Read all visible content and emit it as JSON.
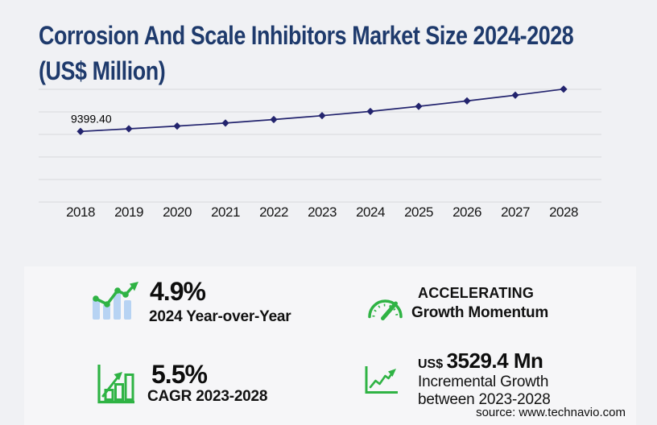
{
  "header": {
    "title_line1": "Corrosion And Scale Inhibitors Market Size 2024-2028",
    "title_line2": "(US$ Million)"
  },
  "chart_data": {
    "type": "line",
    "title": "Corrosion And Scale Inhibitors Market Size 2024-2028 (US$ Million)",
    "x": [
      "2018",
      "2019",
      "2020",
      "2021",
      "2022",
      "2023",
      "2024",
      "2025",
      "2026",
      "2027",
      "2028"
    ],
    "series": [
      {
        "name": "Market size (US$ Million)",
        "values": [
          9399.4,
          9750,
          10110,
          10510,
          10980,
          11498.3,
          12061.7,
          12740,
          13460,
          14220,
          15027.7
        ]
      }
    ],
    "point_labels": [
      {
        "x": "2018",
        "text": "9399.40"
      }
    ],
    "xlabel": "",
    "ylabel": "",
    "ylim": [
      0,
      15000
    ],
    "gridline_step": 3000,
    "grid": true,
    "legend": "none",
    "marker": "diamond",
    "line_color": "#23246e"
  },
  "stats": [
    {
      "value": "4.9%",
      "label": "2024 Year-over-Year",
      "icon": "bar-chart-trend-icon"
    },
    {
      "value": "5.5%",
      "label": "CAGR 2023-2028",
      "icon": "bar-chart-growth-icon"
    },
    {
      "line1": "ACCELERATING",
      "line2": "Growth Momentum",
      "icon": "speedometer-icon"
    },
    {
      "prefix": "US$",
      "value": "3529.4 Mn",
      "label_line1": "Incremental Growth",
      "label_line2": "between 2023-2028",
      "icon": "line-growth-icon"
    }
  ],
  "footer": {
    "source": "source: www.technavio.com"
  },
  "colors": {
    "background": "#f0f1f4",
    "panel": "#f6f6f8",
    "title_navy": "#1e3a6c",
    "line_navy": "#23246e",
    "grid_gray": "#d9d9db",
    "green": "#2fb344",
    "light_blue": "#b7d3f3",
    "text_black": "#141414"
  }
}
